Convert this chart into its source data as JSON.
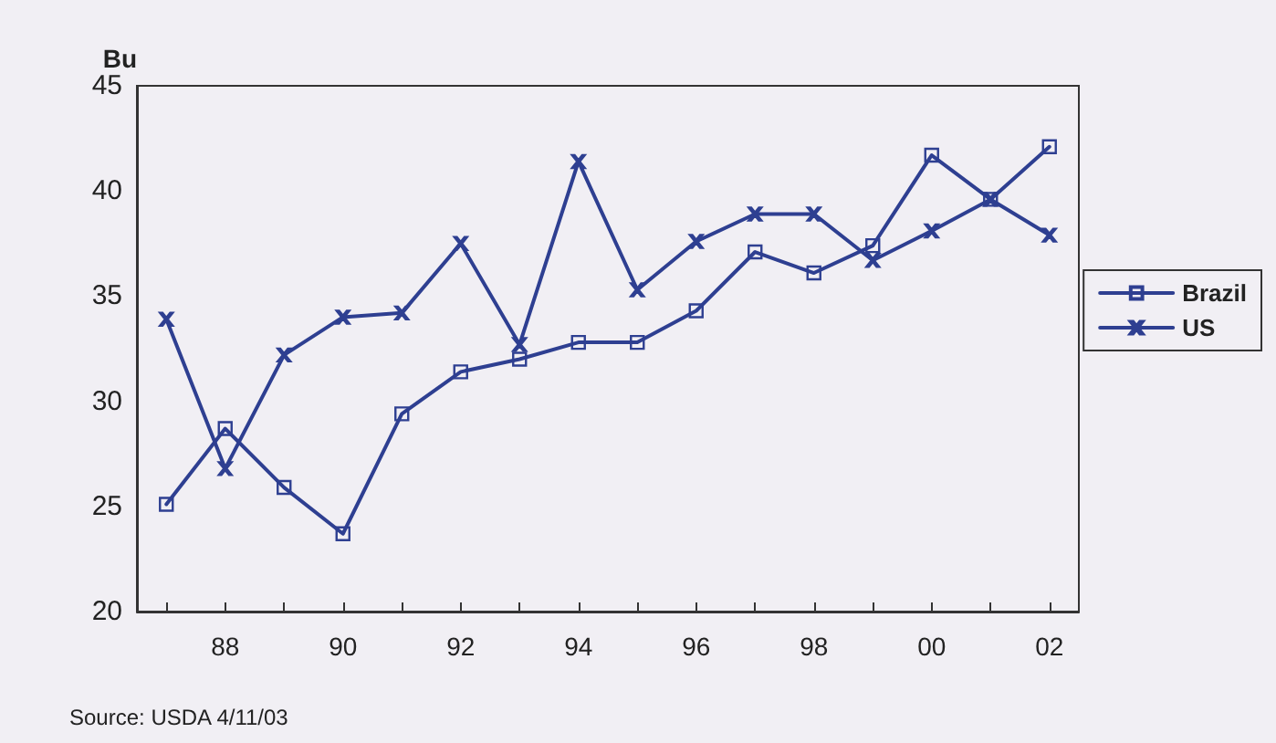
{
  "chart_data": {
    "type": "line",
    "ylabel": "Bu",
    "annotations": [
      "Source: USDA 4/11/03"
    ],
    "categories": [
      null,
      "88",
      null,
      "90",
      null,
      "92",
      null,
      "94",
      null,
      "96",
      null,
      "98",
      null,
      "00",
      null,
      "02"
    ],
    "series": [
      {
        "name": "Brazil",
        "color": "#2e3f91",
        "marker": "square",
        "values": [
          25.1,
          28.7,
          25.9,
          23.7,
          29.4,
          31.4,
          32.0,
          32.8,
          32.8,
          34.3,
          37.1,
          36.1,
          37.4,
          41.7,
          39.6,
          42.1
        ]
      },
      {
        "name": "US",
        "color": "#2e3f91",
        "marker": "cross",
        "values": [
          33.9,
          26.8,
          32.2,
          34.0,
          34.2,
          37.5,
          32.7,
          41.4,
          35.3,
          37.6,
          38.9,
          38.9,
          36.7,
          38.1,
          39.6,
          37.9
        ]
      }
    ],
    "ylim": [
      20,
      45
    ],
    "yticks": [
      20,
      25,
      30,
      35,
      40,
      45
    ],
    "grid": false,
    "legend": "right",
    "line_style": "solid"
  }
}
